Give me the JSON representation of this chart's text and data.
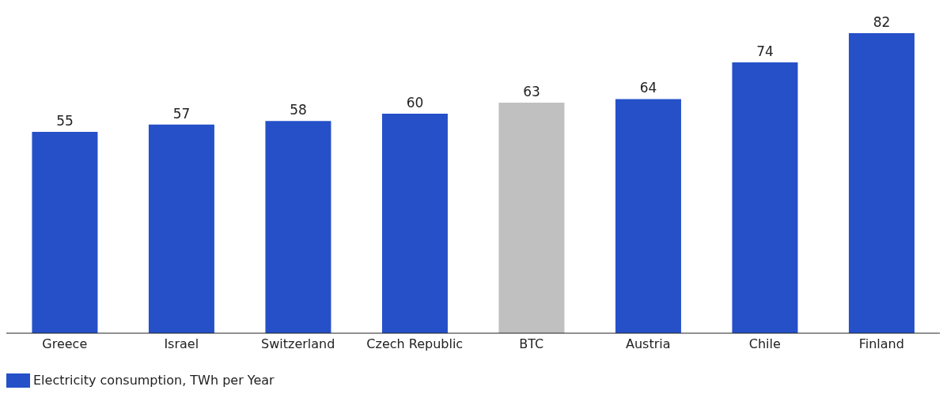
{
  "chart_data": {
    "type": "bar",
    "categories": [
      "Greece",
      "Israel",
      "Switzerland",
      "Czech Republic",
      "BTC",
      "Austria",
      "Chile",
      "Finland"
    ],
    "series": [
      {
        "name": "Electricity consumption, TWh per Year",
        "color": "#2550c8",
        "values": [
          55,
          57,
          58,
          60,
          63,
          64,
          74,
          82
        ],
        "colors": [
          "#2550c8",
          "#2550c8",
          "#2550c8",
          "#2550c8",
          "#c0c0c0",
          "#2550c8",
          "#2550c8",
          "#2550c8"
        ]
      }
    ],
    "data_labels": true,
    "legend": "bottom left",
    "grid": false
  }
}
